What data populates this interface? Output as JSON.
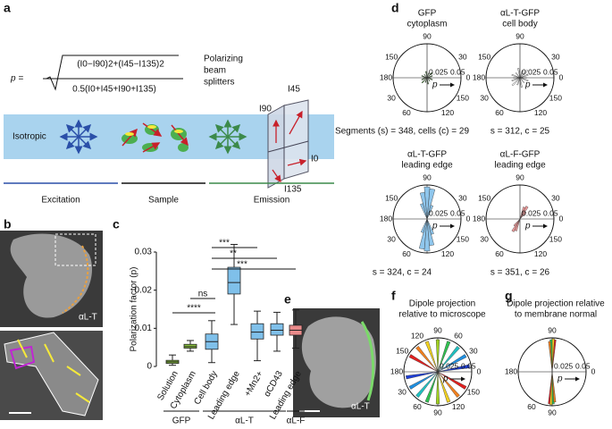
{
  "figure": {
    "a": {
      "label": "a",
      "lhs": "p =",
      "numerator": "(I0−I90)2+(I45−I135)2",
      "denominator": "0.5(I0+I45+I90+I135)",
      "splitters": [
        "Polarizing",
        "beam",
        "splitters"
      ],
      "isotropic": "Isotropic",
      "channels": [
        "I90",
        "I45",
        "I0",
        "I135"
      ],
      "stages": [
        "Excitation",
        "Sample",
        "Emission"
      ]
    },
    "b": {
      "label": "b",
      "tag": "αL-T"
    },
    "d": {
      "label": "d",
      "plots": [
        {
          "title": [
            "GFP",
            "cytoplasm"
          ],
          "angles": [
            90,
            150,
            30,
            180,
            0,
            30,
            150,
            60,
            120
          ],
          "scale": [
            "0.025",
            "0.05"
          ],
          "p": "p",
          "caption": "Segments (s) = 348, cells (c) = 29"
        },
        {
          "title": [
            "αL-T-GFP",
            "cell body"
          ],
          "angles": [
            90,
            150,
            30,
            180,
            0,
            30,
            150,
            60,
            120
          ],
          "scale": [
            "0.025",
            "0.05"
          ],
          "p": "p",
          "caption": "s = 312, c = 25"
        },
        {
          "title": [
            "αL-T-GFP",
            "leading edge"
          ],
          "angles": [
            90,
            150,
            30,
            180,
            0,
            30,
            150,
            60,
            120
          ],
          "scale": [
            "0.025",
            "0.05"
          ],
          "p": "p",
          "caption": "s = 324, c = 24"
        },
        {
          "title": [
            "αL-F-GFP",
            "leading edge"
          ],
          "angles": [
            90,
            150,
            30,
            180,
            0,
            30,
            150,
            60,
            120
          ],
          "scale": [
            "0.025",
            "0.05"
          ],
          "p": "p",
          "caption": "s = 351, c = 26"
        }
      ]
    },
    "e": {
      "label": "e",
      "tag": "αL-T"
    },
    "f": {
      "label": "f",
      "title": [
        "Dipole projection",
        "relative to microscope"
      ],
      "angles": [
        120,
        90,
        60,
        150,
        30,
        180,
        0,
        30,
        150,
        60,
        90,
        120
      ],
      "scale": [
        "0.025",
        "0.05"
      ],
      "p": "p"
    },
    "g": {
      "label": "g",
      "title": [
        "Dipole projection relative",
        "to membrane normal"
      ],
      "angles": [
        90,
        180,
        0,
        60,
        90
      ],
      "scale": [
        "0.025",
        "0.05"
      ],
      "p": "p"
    }
  },
  "chart_data": {
    "type": "box",
    "label": "c",
    "y_label": "Polarization factor (p)",
    "categories": [
      "Solution",
      "Cytoplasm",
      "Cell body",
      "Leading edge",
      "+Mn2+",
      "αCD43",
      "Leading edge"
    ],
    "boxes": [
      {
        "whisker_low": 0.0003,
        "q1": 0.0008,
        "median": 0.0012,
        "q3": 0.0016,
        "whisker_high": 0.003,
        "color": "#8cc63f"
      },
      {
        "whisker_low": 0.004,
        "q1": 0.0048,
        "median": 0.0052,
        "q3": 0.0058,
        "whisker_high": 0.0068,
        "color": "#8cc63f"
      },
      {
        "whisker_low": 0.001,
        "q1": 0.0045,
        "median": 0.0065,
        "q3": 0.0085,
        "whisker_high": 0.012,
        "color": "#7fc0ea"
      },
      {
        "whisker_low": 0.011,
        "q1": 0.019,
        "median": 0.022,
        "q3": 0.026,
        "whisker_high": 0.032,
        "color": "#7fc0ea"
      },
      {
        "whisker_low": 0.0015,
        "q1": 0.0072,
        "median": 0.009,
        "q3": 0.0112,
        "whisker_high": 0.0145,
        "color": "#7fc0ea"
      },
      {
        "whisker_low": 0.004,
        "q1": 0.0082,
        "median": 0.0095,
        "q3": 0.0112,
        "whisker_high": 0.0142,
        "color": "#7fc0ea"
      },
      {
        "whisker_low": 0.0048,
        "q1": 0.0082,
        "median": 0.0095,
        "q3": 0.0108,
        "whisker_high": 0.0148,
        "color": "#e98a8a"
      }
    ],
    "groups": [
      "GFP",
      "αL-T",
      "αL-F"
    ],
    "significance": [
      "ns",
      "****",
      "***",
      "**",
      "***"
    ],
    "ylim": [
      0,
      0.03
    ],
    "yticks": [
      0,
      0.01,
      0.02,
      0.03
    ]
  }
}
